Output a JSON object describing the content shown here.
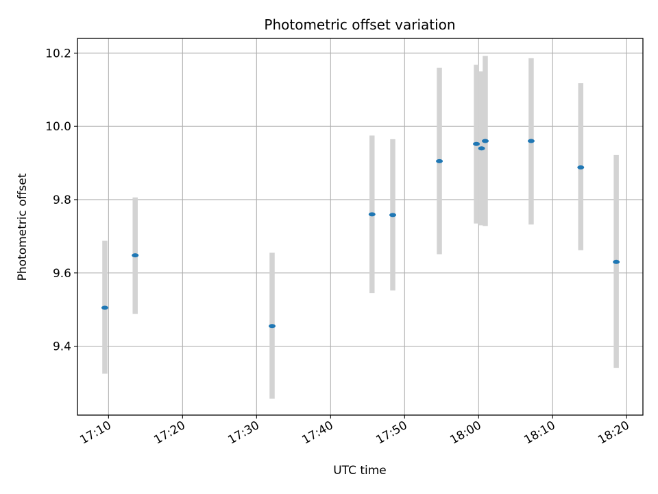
{
  "chart_data": {
    "type": "scatter",
    "title": "Photometric offset variation",
    "xlabel": "UTC time",
    "ylabel": "Photometric offset",
    "grid": true,
    "x_ticks": [
      "17:10",
      "17:20",
      "17:30",
      "17:40",
      "17:50",
      "18:00",
      "18:10",
      "18:20"
    ],
    "y_ticks": [
      "9.4",
      "9.6",
      "9.8",
      "10.0",
      "10.2"
    ],
    "xlim": [
      "17:05.8",
      "18:22.2"
    ],
    "ylim": [
      9.212,
      10.24
    ],
    "errorbar_color": "#d3d3d3",
    "point_color": "#1f77b4",
    "points": [
      {
        "time": "17:09.5",
        "y": 9.505,
        "ylow": 9.325,
        "yhigh": 9.688
      },
      {
        "time": "17:13.6",
        "y": 9.648,
        "ylow": 9.488,
        "yhigh": 9.806
      },
      {
        "time": "17:32.1",
        "y": 9.455,
        "ylow": 9.257,
        "yhigh": 9.655
      },
      {
        "time": "17:45.6",
        "y": 9.76,
        "ylow": 9.545,
        "yhigh": 9.975
      },
      {
        "time": "17:48.4",
        "y": 9.758,
        "ylow": 9.552,
        "yhigh": 9.965
      },
      {
        "time": "17:54.7",
        "y": 9.905,
        "ylow": 9.651,
        "yhigh": 10.16
      },
      {
        "time": "17:59.7",
        "y": 9.952,
        "ylow": 9.735,
        "yhigh": 10.168
      },
      {
        "time": "18:00.4",
        "y": 9.94,
        "ylow": 9.73,
        "yhigh": 10.15
      },
      {
        "time": "18:00.9",
        "y": 9.96,
        "ylow": 9.728,
        "yhigh": 10.192
      },
      {
        "time": "18:07.1",
        "y": 9.96,
        "ylow": 9.732,
        "yhigh": 10.186
      },
      {
        "time": "18:13.8",
        "y": 9.888,
        "ylow": 9.662,
        "yhigh": 10.118
      },
      {
        "time": "18:18.6",
        "y": 9.63,
        "ylow": 9.341,
        "yhigh": 9.922
      }
    ]
  }
}
